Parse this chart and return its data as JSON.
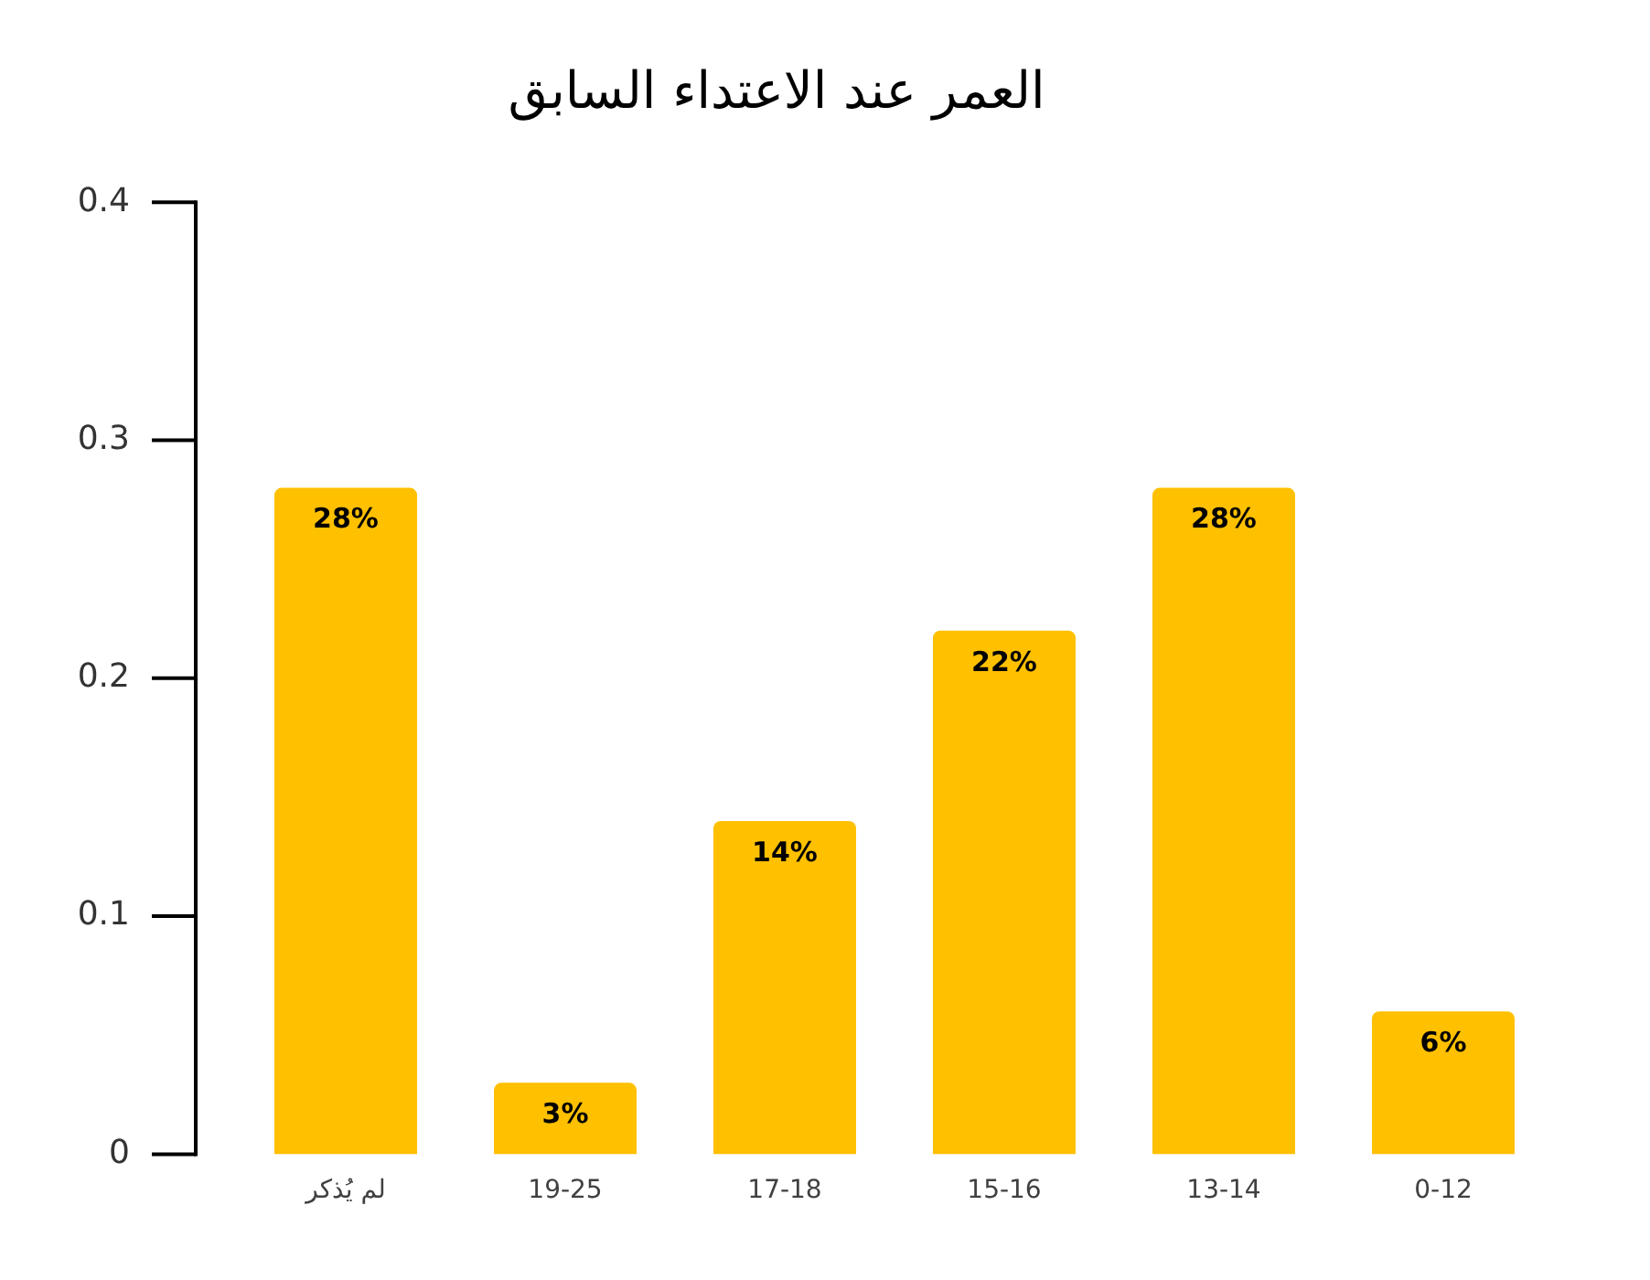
{
  "chart_data": {
    "type": "bar",
    "title": "العمر عند الاعتداء السابق",
    "categories": [
      "لم يُذكر",
      "19-25",
      "17-18",
      "15-16",
      "13-14",
      "0-12"
    ],
    "values": [
      0.28,
      0.03,
      0.14,
      0.22,
      0.28,
      0.06
    ],
    "value_labels": [
      "28%",
      "3%",
      "14%",
      "22%",
      "28%",
      "6%"
    ],
    "color": "#ffc000",
    "ylim": [
      0,
      0.4
    ],
    "yticks": [
      0,
      0.1,
      0.2,
      0.3,
      0.4
    ],
    "grid": false,
    "legend": false
  }
}
